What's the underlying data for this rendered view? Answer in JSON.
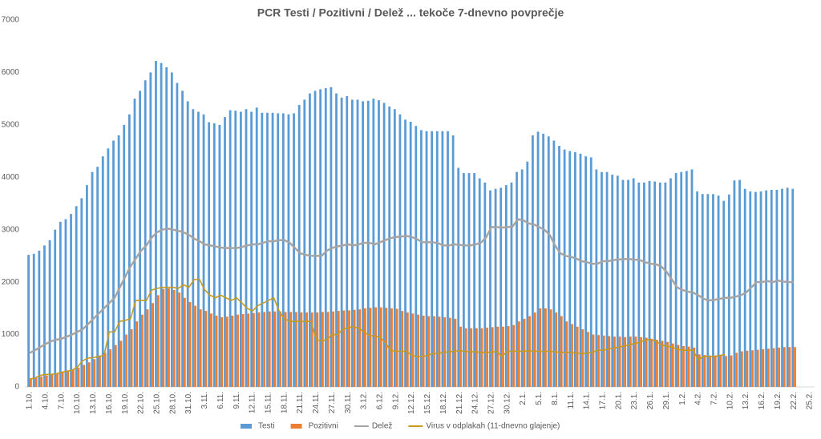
{
  "chart_data": {
    "type": "bar",
    "title": "PCR Testi / Pozitivni / Delež ... tekoče 7-dnevno povprečje",
    "ylim": [
      0,
      7000
    ],
    "yticks": [
      0,
      1000,
      2000,
      3000,
      4000,
      5000,
      6000,
      7000
    ],
    "grid": false,
    "legend": "bottom",
    "categories": [
      "1.10.",
      null,
      null,
      "4.10.",
      null,
      null,
      "7.10.",
      null,
      null,
      "10.10.",
      null,
      null,
      "13.10.",
      null,
      null,
      "16.10.",
      null,
      null,
      "19.10.",
      null,
      null,
      "22.10.",
      null,
      null,
      "25.10.",
      null,
      null,
      "28.10.",
      null,
      null,
      "31.10.",
      null,
      null,
      "3.11.",
      null,
      null,
      "6.11.",
      null,
      null,
      "9.11.",
      null,
      null,
      "12.11.",
      null,
      null,
      "15.11.",
      null,
      null,
      "18.11.",
      null,
      null,
      "21.11.",
      null,
      null,
      "24.11.",
      null,
      null,
      "27.11.",
      null,
      null,
      "30.11.",
      null,
      null,
      "3.12.",
      null,
      null,
      "6.12.",
      null,
      null,
      "9.12.",
      null,
      null,
      "12.12.",
      null,
      null,
      "15.12.",
      null,
      null,
      "18.12.",
      null,
      null,
      "21.12.",
      null,
      null,
      "24.12.",
      null,
      null,
      "27.12.",
      null,
      null,
      "30.12.",
      null,
      null,
      "2.1.",
      null,
      null,
      "5.1.",
      null,
      null,
      "8.1.",
      null,
      null,
      "11.1.",
      null,
      null,
      "14.1.",
      null,
      null,
      "17.1.",
      null,
      null,
      "20.1.",
      null,
      null,
      "23.1.",
      null,
      null,
      "26.1.",
      null,
      null,
      "29.1.",
      null,
      null,
      "1.2.",
      null,
      null,
      "4.2.",
      null,
      null,
      "7.2.",
      null,
      null,
      "10.2.",
      null,
      null,
      "13.2.",
      null,
      null,
      "16.2.",
      null,
      null,
      "19.2.",
      null,
      null,
      "22.2.",
      null,
      null,
      "25.2."
    ],
    "series": [
      {
        "name": "Testi",
        "type": "bar",
        "color": "#5b9bd5",
        "values": [
          2520,
          2540,
          2600,
          2700,
          2800,
          3000,
          3150,
          3200,
          3300,
          3450,
          3600,
          3850,
          4100,
          4200,
          4400,
          4550,
          4700,
          4800,
          5000,
          5200,
          5500,
          5650,
          5850,
          6000,
          6220,
          6180,
          6100,
          6000,
          5800,
          5650,
          5450,
          5300,
          5250,
          5200,
          5050,
          5030,
          5000,
          5150,
          5280,
          5270,
          5250,
          5300,
          5250,
          5330,
          5230,
          5230,
          5230,
          5220,
          5220,
          5200,
          5220,
          5380,
          5480,
          5600,
          5650,
          5680,
          5700,
          5720,
          5600,
          5520,
          5550,
          5480,
          5480,
          5450,
          5460,
          5500,
          5470,
          5420,
          5350,
          5300,
          5200,
          5100,
          5060,
          4980,
          4900,
          4880,
          4880,
          4880,
          4880,
          4880,
          4800,
          4180,
          4080,
          4080,
          4080,
          3980,
          3900,
          3750,
          3780,
          3800,
          3850,
          3900,
          4100,
          4150,
          4300,
          4800,
          4870,
          4830,
          4780,
          4700,
          4600,
          4530,
          4500,
          4480,
          4450,
          4400,
          4380,
          4150,
          4100,
          4100,
          4050,
          4030,
          3950,
          3950,
          3980,
          3900,
          3900,
          3930,
          3920,
          3900,
          3900,
          3980,
          4080,
          4100,
          4120,
          4150,
          3730,
          3680,
          3680,
          3680,
          3650,
          3550,
          3670,
          3940,
          3950,
          3780,
          3730,
          3720,
          3730,
          3750,
          3760,
          3760,
          3780,
          3800,
          3780,
          null,
          null,
          null
        ]
      },
      {
        "name": "Pozitivni",
        "type": "bar",
        "color": "#ed7d31",
        "values": [
          150,
          170,
          200,
          220,
          240,
          260,
          280,
          300,
          330,
          370,
          420,
          470,
          530,
          600,
          650,
          720,
          800,
          880,
          1000,
          1100,
          1250,
          1380,
          1480,
          1600,
          1750,
          1870,
          1880,
          1850,
          1800,
          1700,
          1620,
          1550,
          1480,
          1450,
          1400,
          1360,
          1330,
          1340,
          1360,
          1380,
          1390,
          1400,
          1410,
          1420,
          1430,
          1440,
          1440,
          1440,
          1430,
          1430,
          1430,
          1420,
          1420,
          1420,
          1420,
          1430,
          1430,
          1440,
          1450,
          1460,
          1460,
          1470,
          1480,
          1500,
          1510,
          1520,
          1520,
          1510,
          1500,
          1490,
          1450,
          1420,
          1400,
          1380,
          1360,
          1350,
          1350,
          1340,
          1330,
          1320,
          1300,
          1150,
          1120,
          1120,
          1120,
          1120,
          1130,
          1140,
          1150,
          1150,
          1160,
          1180,
          1250,
          1300,
          1350,
          1420,
          1500,
          1500,
          1480,
          1420,
          1350,
          1250,
          1200,
          1150,
          1100,
          1050,
          1000,
          990,
          980,
          970,
          960,
          960,
          950,
          960,
          960,
          950,
          940,
          920,
          900,
          880,
          860,
          830,
          800,
          780,
          770,
          750,
          620,
          610,
          600,
          600,
          600,
          590,
          600,
          650,
          680,
          690,
          700,
          710,
          720,
          730,
          740,
          750,
          760,
          760,
          760,
          null,
          null,
          null
        ]
      },
      {
        "name": "Delež",
        "type": "line",
        "color": "#a5a5a5",
        "values": [
          650,
          700,
          760,
          820,
          870,
          900,
          920,
          960,
          1000,
          1050,
          1100,
          1200,
          1300,
          1400,
          1500,
          1600,
          1700,
          1900,
          2100,
          2300,
          2450,
          2600,
          2700,
          2850,
          2950,
          3000,
          3020,
          3000,
          2980,
          2950,
          2900,
          2830,
          2780,
          2720,
          2700,
          2680,
          2660,
          2650,
          2650,
          2650,
          2670,
          2700,
          2720,
          2720,
          2750,
          2780,
          2780,
          2800,
          2800,
          2750,
          2650,
          2550,
          2520,
          2500,
          2500,
          2500,
          2600,
          2650,
          2680,
          2700,
          2720,
          2700,
          2720,
          2750,
          2750,
          2720,
          2760,
          2800,
          2840,
          2860,
          2870,
          2880,
          2860,
          2820,
          2760,
          2760,
          2760,
          2740,
          2700,
          2700,
          2720,
          2710,
          2700,
          2700,
          2720,
          2750,
          2850,
          3050,
          3050,
          3040,
          3050,
          3060,
          3200,
          3180,
          3120,
          3100,
          3050,
          3000,
          2900,
          2700,
          2550,
          2500,
          2480,
          2450,
          2400,
          2380,
          2350,
          2350,
          2400,
          2400,
          2420,
          2430,
          2440,
          2440,
          2430,
          2420,
          2380,
          2350,
          2340,
          2300,
          2200,
          2050,
          1900,
          1850,
          1820,
          1800,
          1750,
          1680,
          1650,
          1660,
          1680,
          1700,
          1700,
          1720,
          1750,
          1800,
          1900,
          2000,
          2000,
          2020,
          2000,
          2030,
          2010,
          2000,
          2000,
          null,
          null,
          null
        ]
      },
      {
        "name": "Virus v odplakah (11-dnevno glajenje)",
        "type": "line",
        "color": "#c49a22",
        "values": [
          150,
          170,
          220,
          240,
          240,
          250,
          280,
          300,
          320,
          380,
          500,
          550,
          560,
          580,
          600,
          1050,
          1050,
          1250,
          1270,
          1300,
          1650,
          1650,
          1650,
          1850,
          1880,
          1900,
          1900,
          1900,
          1880,
          1950,
          1900,
          2050,
          2050,
          1850,
          1750,
          1700,
          1750,
          1700,
          1650,
          1700,
          1600,
          1500,
          1450,
          1550,
          1600,
          1650,
          1700,
          1450,
          1300,
          1250,
          1250,
          1250,
          1250,
          1250,
          900,
          880,
          900,
          1000,
          1000,
          1100,
          1130,
          1150,
          1120,
          1050,
          980,
          970,
          950,
          850,
          700,
          680,
          680,
          680,
          600,
          580,
          580,
          600,
          640,
          640,
          660,
          670,
          680,
          690,
          680,
          670,
          670,
          660,
          660,
          660,
          680,
          580,
          680,
          680,
          680,
          680,
          690,
          680,
          680,
          680,
          680,
          670,
          660,
          660,
          660,
          640,
          640,
          640,
          660,
          700,
          700,
          720,
          740,
          760,
          780,
          800,
          830,
          850,
          900,
          900,
          880,
          800,
          780,
          760,
          720,
          700,
          700,
          700,
          520,
          580,
          580,
          580,
          600,
          620,
          null,
          null,
          null,
          null,
          null,
          null,
          null,
          null,
          null,
          null,
          null,
          null,
          null,
          null,
          null,
          null
        ]
      }
    ]
  }
}
